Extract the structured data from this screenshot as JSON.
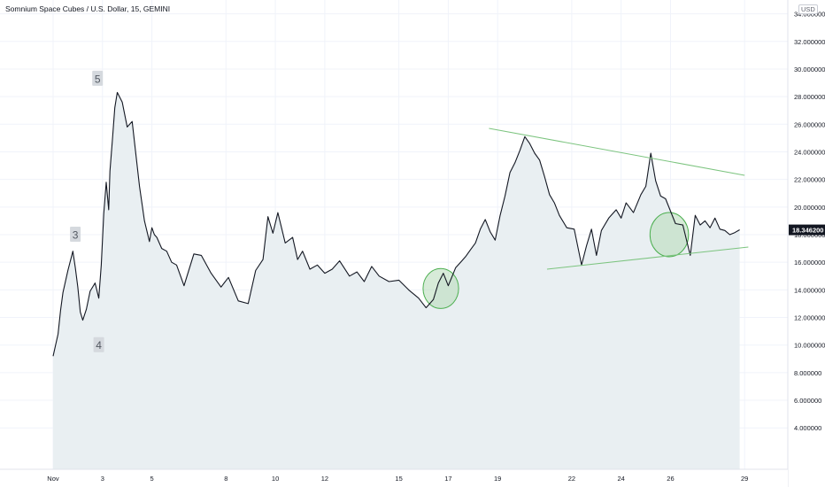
{
  "header": {
    "symbol_title": "Somnium Space Cubes / U.S. Dollar, 15, GEMINI",
    "currency": "USD"
  },
  "colors": {
    "price_line": "#131722",
    "area_fill": "#e9eff2",
    "trendline": "#7cc47f",
    "circle_fill": "#b6dab8",
    "circle_stroke": "#4caf50",
    "wave_label_bg": "#d5d9de",
    "wave_label_text": "#525861",
    "grid": "#f0f3fa",
    "axis_text": "#131722"
  },
  "chart_data": {
    "type": "line",
    "series": [
      {
        "values_desc": "close",
        "x": [
          0,
          0.2,
          0.3,
          0.4,
          0.5,
          0.6,
          0.7,
          0.8,
          0.9,
          1.0,
          1.1,
          1.2,
          1.35,
          1.5,
          1.7,
          1.85,
          1.95,
          2.05,
          2.15,
          2.25,
          2.3,
          2.4,
          2.5,
          2.6,
          2.8,
          3.0,
          3.2,
          3.5,
          3.7,
          3.9,
          4.0,
          4.1,
          4.2,
          4.4,
          4.6,
          4.8,
          5.0,
          5.3,
          5.7,
          6.0,
          6.4,
          6.8,
          7.1,
          7.5,
          7.9,
          8.2,
          8.5,
          8.7,
          8.9,
          9.1,
          9.4,
          9.7,
          9.9,
          10.1,
          10.4,
          10.7,
          11.0,
          11.3,
          11.6,
          12.0,
          12.3,
          12.6,
          12.9,
          13.2,
          13.6,
          14.0,
          14.4,
          14.8,
          15.1,
          15.4,
          15.6,
          15.8,
          16.0,
          16.3,
          16.5,
          16.7,
          16.9,
          17.1,
          17.3,
          17.5,
          17.7,
          17.9,
          18.1,
          18.3,
          18.5,
          18.7,
          18.9,
          19.1,
          19.3,
          19.5,
          19.7,
          19.9,
          20.1,
          20.3,
          20.5,
          20.8,
          21.1,
          21.4,
          21.6,
          21.8,
          22.0,
          22.2,
          22.5,
          22.8,
          23.0,
          23.2,
          23.5,
          23.8,
          24.0,
          24.2,
          24.4,
          24.6,
          24.8,
          25.0,
          25.2,
          25.5,
          25.8,
          26.0,
          26.2,
          26.4,
          26.6,
          26.8,
          27.0,
          27.2,
          27.4,
          27.6,
          27.8
        ],
        "y": [
          9.2,
          10.8,
          12.5,
          13.8,
          14.6,
          15.4,
          16.1,
          16.8,
          15.6,
          14.2,
          12.4,
          11.8,
          12.6,
          13.9,
          14.5,
          13.4,
          15.8,
          19.5,
          21.8,
          19.8,
          22.6,
          24.8,
          27.2,
          28.3,
          27.6,
          25.8,
          26.2,
          21.5,
          19.0,
          17.5,
          18.5,
          18.0,
          17.8,
          17.0,
          16.8,
          16.0,
          15.8,
          14.3,
          16.6,
          16.5,
          15.2,
          14.2,
          14.9,
          13.2,
          13.0,
          15.4,
          16.2,
          19.3,
          18.1,
          19.6,
          17.4,
          17.8,
          16.2,
          16.8,
          15.5,
          15.8,
          15.2,
          15.5,
          16.1,
          15.0,
          15.3,
          14.6,
          15.7,
          15.0,
          14.6,
          14.7,
          14.0,
          13.4,
          12.7,
          13.3,
          14.5,
          15.2,
          14.3,
          15.6,
          16.0,
          16.4,
          16.9,
          17.4,
          18.4,
          19.1,
          18.2,
          17.6,
          19.4,
          20.8,
          22.5,
          23.2,
          24.1,
          25.1,
          24.6,
          23.9,
          23.4,
          22.2,
          20.9,
          20.3,
          19.4,
          18.5,
          18.4,
          15.8,
          17.2,
          18.4,
          16.5,
          18.3,
          19.2,
          19.8,
          19.2,
          20.3,
          19.6,
          20.9,
          21.5,
          23.9,
          21.9,
          20.8,
          20.6,
          19.7,
          18.8,
          18.7,
          16.5,
          19.4,
          18.7,
          19.0,
          18.5,
          19.2,
          18.4,
          18.3,
          18.0,
          18.15,
          18.35
        ]
      }
    ],
    "x_ticks": [
      {
        "label": "Nov",
        "x": 0
      },
      {
        "label": "3",
        "x": 2
      },
      {
        "label": "5",
        "x": 4
      },
      {
        "label": "8",
        "x": 7
      },
      {
        "label": "10",
        "x": 9
      },
      {
        "label": "12",
        "x": 11
      },
      {
        "label": "15",
        "x": 14
      },
      {
        "label": "17",
        "x": 16
      },
      {
        "label": "19",
        "x": 18
      },
      {
        "label": "22",
        "x": 21
      },
      {
        "label": "24",
        "x": 23
      },
      {
        "label": "26",
        "x": 25
      },
      {
        "label": "29",
        "x": 28
      }
    ],
    "x_domain": [
      -2.15,
      29.75
    ],
    "y_ticks": [
      "4.000000",
      "6.000000",
      "8.000000",
      "10.000000",
      "12.000000",
      "14.000000",
      "16.000000",
      "18.000000",
      "20.000000",
      "22.000000",
      "24.000000",
      "26.000000",
      "28.000000",
      "30.000000",
      "32.000000",
      "34.000000"
    ],
    "ylim": [
      1.0,
      35.0
    ],
    "last_price": {
      "label": "18.346200",
      "value": 18.3462
    },
    "wave_labels": [
      {
        "text": "3",
        "x": 0.9,
        "y": 18.0
      },
      {
        "text": "4",
        "x": 1.85,
        "y": 10.0
      },
      {
        "text": "5",
        "x": 1.8,
        "y": 29.3
      }
    ],
    "trendlines": [
      {
        "x1": 17.65,
        "y1": 25.7,
        "x2": 28.0,
        "y2": 22.3
      },
      {
        "x1": 20.0,
        "y1": 15.5,
        "x2": 28.15,
        "y2": 17.1
      }
    ],
    "highlight_circles": [
      {
        "cx": 15.7,
        "cy": 14.1,
        "rx": 0.72,
        "ry": 1.45
      },
      {
        "cx": 24.95,
        "cy": 18.0,
        "rx": 0.78,
        "ry": 1.6
      }
    ],
    "grid": true
  }
}
